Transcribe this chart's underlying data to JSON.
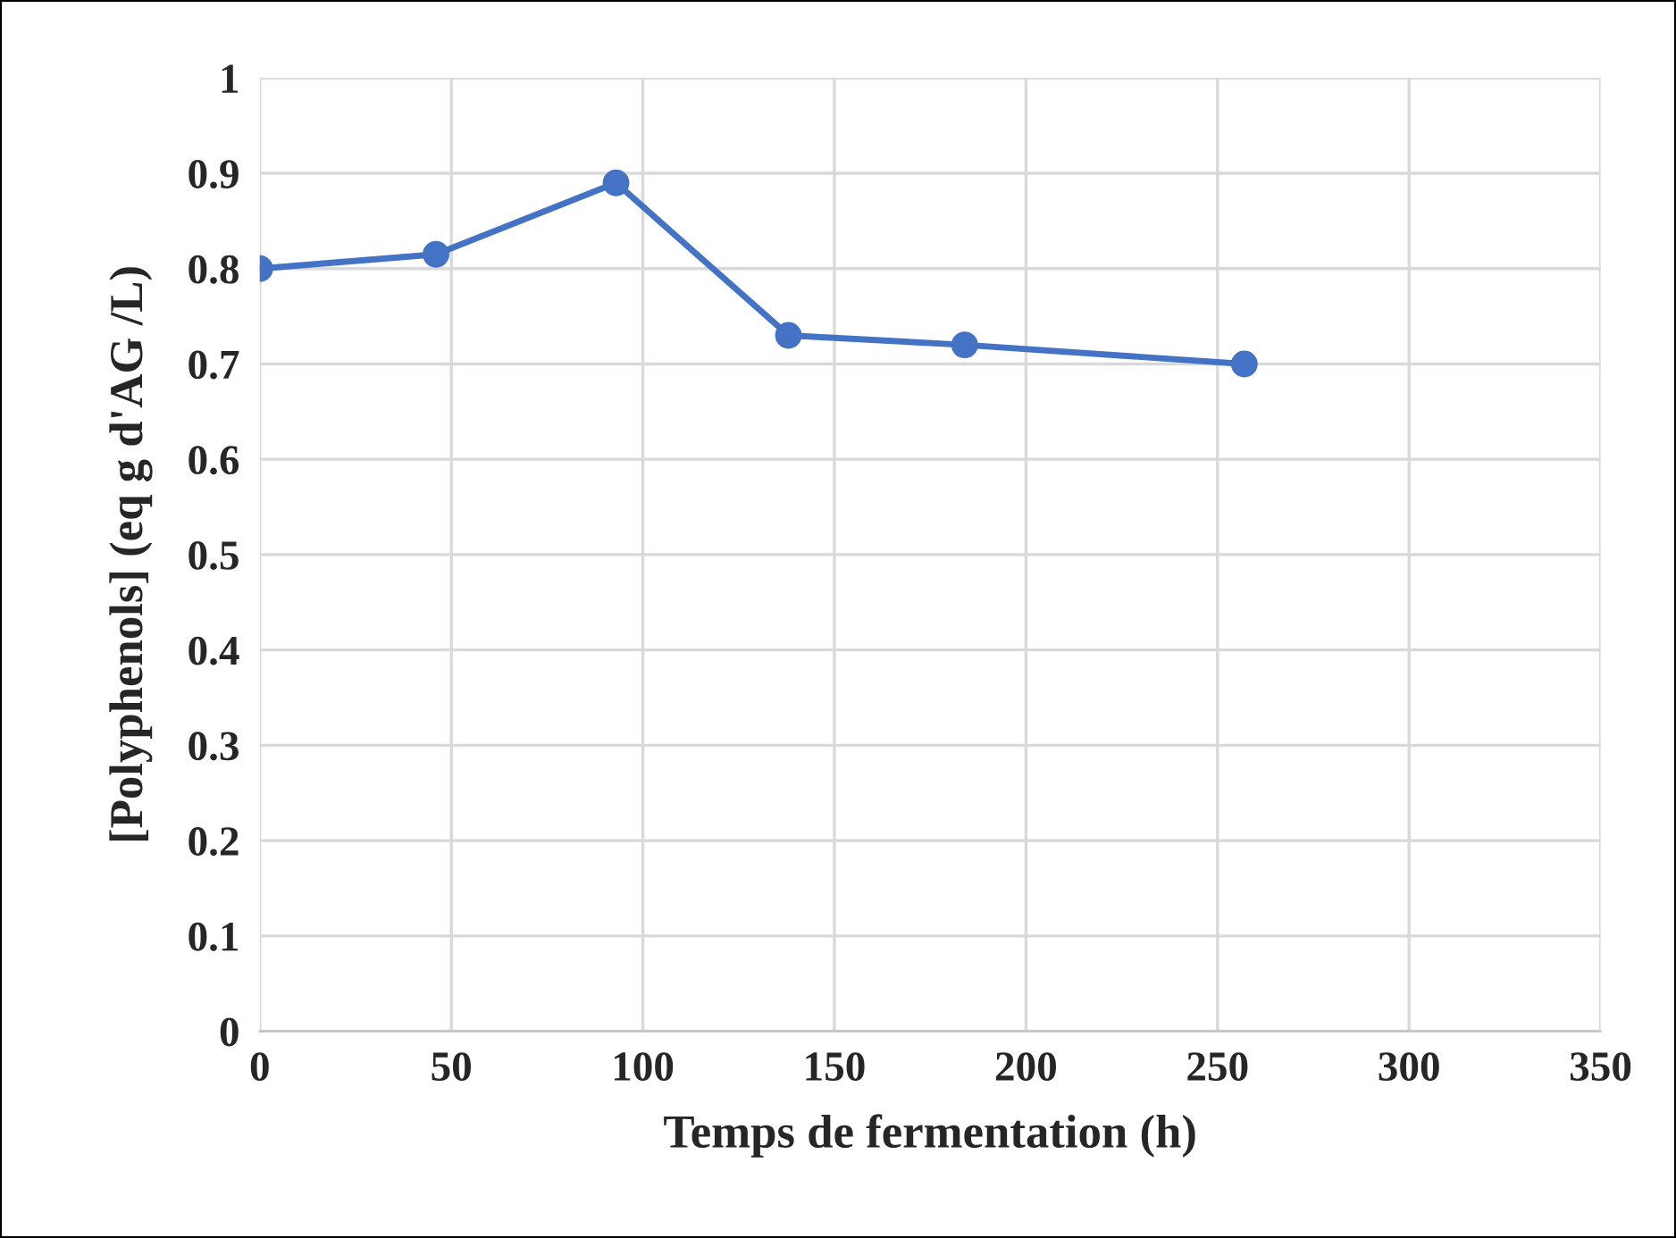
{
  "chart_data": {
    "type": "line",
    "xlabel": "Temps de fermentation (h)",
    "ylabel": "[Polyphenols] (eq g d'AG /L)",
    "series": [
      {
        "color": "#4472c4",
        "x": [
          0,
          46,
          93,
          138,
          184,
          257
        ],
        "values": [
          0.8,
          0.815,
          0.89,
          0.73,
          0.72,
          0.7
        ]
      }
    ],
    "xlim": [
      0,
      350
    ],
    "xticks": [
      0,
      50,
      100,
      150,
      200,
      250,
      300,
      350
    ],
    "ylim": [
      0,
      1
    ],
    "yticks": [
      0,
      0.1,
      0.2,
      0.3,
      0.4,
      0.5,
      0.6,
      0.7,
      0.8,
      0.9,
      1
    ],
    "grid": true,
    "marker": "circle",
    "line_style": "solid"
  }
}
